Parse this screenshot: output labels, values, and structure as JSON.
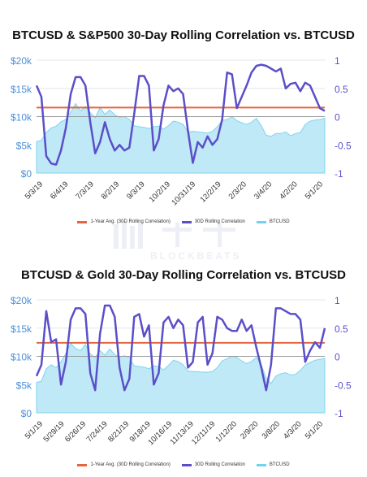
{
  "charts": [
    {
      "title": "BTCUSD & S&P500 30-Day Rolling Correlation vs. BTCUSD",
      "legend": [
        {
          "label": "1-Year Avg. (30D Rolling Correlation)",
          "color": "#e8643c"
        },
        {
          "label": "30D Rolling Correlation",
          "color": "#5b4fc9"
        },
        {
          "label": "BTCUSD",
          "color": "#6fd3f0"
        }
      ]
    },
    {
      "title": "BTCUSD & Gold 30-Day Rolling Correlation vs. BTCUSD",
      "legend": [
        {
          "label": "1-Year Avg. (30D Rolling Correlation)",
          "color": "#e8643c"
        },
        {
          "label": "30D Rolling Correlation",
          "color": "#5b4fc9"
        },
        {
          "label": "BTCUSD",
          "color": "#6fd3f0"
        }
      ]
    }
  ],
  "watermark": {
    "text": "BLOCKBEATS"
  },
  "chart_data": [
    {
      "type": "line",
      "title": "BTCUSD & S&P500 30-Day Rolling Correlation vs. BTCUSD",
      "x_tick_labels": [
        "5/3/19",
        "6/4/19",
        "7/3/19",
        "8/2/19",
        "9/3/19",
        "10/2/19",
        "10/31/19",
        "12/2/19",
        "2/3/20",
        "3/4/20",
        "4/2/20",
        "5/1/20"
      ],
      "left_axis": {
        "ticks": [
          "$0",
          "$5k",
          "$10k",
          "$15k",
          "$20k"
        ],
        "ylim": [
          0,
          20000
        ]
      },
      "right_axis": {
        "ticks": [
          "-1",
          "-0.5",
          "0",
          "0.5",
          "1"
        ],
        "ylim": [
          -1,
          1
        ]
      },
      "series": [
        {
          "name": "BTCUSD",
          "axis": "left",
          "kind": "area",
          "values": [
            5600,
            5800,
            7200,
            8000,
            8300,
            9100,
            9500,
            10800,
            12300,
            11000,
            11800,
            10700,
            9800,
            11600,
            10400,
            11200,
            10300,
            9900,
            10000,
            9500,
            8400,
            8200,
            8100,
            7900,
            8200,
            8300,
            7800,
            8400,
            9200,
            9000,
            8600,
            7300,
            7400,
            7300,
            7200,
            7100,
            7400,
            8200,
            9300,
            9500,
            10000,
            9300,
            8900,
            8600,
            9000,
            9700,
            8400,
            6700,
            6500,
            7000,
            7000,
            7300,
            6600,
            7000,
            7200,
            8600,
            9200,
            9400,
            9500,
            9700
          ]
        },
        {
          "name": "30D Rolling Correlation",
          "axis": "right",
          "kind": "line",
          "values": [
            0.55,
            0.35,
            -0.7,
            -0.83,
            -0.85,
            -0.6,
            -0.2,
            0.4,
            0.7,
            0.7,
            0.55,
            -0.1,
            -0.65,
            -0.45,
            -0.1,
            -0.4,
            -0.6,
            -0.5,
            -0.6,
            -0.55,
            0.05,
            0.72,
            0.72,
            0.55,
            -0.6,
            -0.4,
            0.2,
            0.55,
            0.45,
            0.5,
            0.4,
            -0.25,
            -0.82,
            -0.45,
            -0.55,
            -0.35,
            -0.5,
            -0.4,
            -0.05,
            0.78,
            0.75,
            0.15,
            0.35,
            0.55,
            0.78,
            0.9,
            0.92,
            0.9,
            0.85,
            0.8,
            0.85,
            0.5,
            0.58,
            0.6,
            0.45,
            0.6,
            0.55,
            0.35,
            0.15,
            0.1
          ]
        },
        {
          "name": "1-Year Avg. (30D Rolling Correlation)",
          "axis": "right",
          "kind": "hline",
          "values": [
            0.16
          ]
        }
      ]
    },
    {
      "type": "line",
      "title": "BTCUSD & Gold 30-Day Rolling Correlation vs. BTCUSD",
      "x_tick_labels": [
        "5/1/19",
        "5/29/19",
        "6/26/19",
        "7/24/19",
        "8/21/19",
        "9/18/19",
        "10/16/19",
        "11/13/19",
        "12/11/19",
        "1/12/20",
        "2/9/20",
        "3/8/20",
        "4/3/20",
        "5/1/20"
      ],
      "left_axis": {
        "ticks": [
          "$0",
          "$5k",
          "$10k",
          "$15k",
          "$20k"
        ],
        "ylim": [
          0,
          20000
        ]
      },
      "right_axis": {
        "ticks": [
          "-1",
          "-0.5",
          "0",
          "0.5",
          "1"
        ],
        "ylim": [
          -1,
          1
        ]
      },
      "series": [
        {
          "name": "BTCUSD",
          "axis": "left",
          "kind": "area",
          "values": [
            5400,
            5600,
            7800,
            8500,
            8000,
            9000,
            10500,
            12300,
            11400,
            11000,
            12100,
            10400,
            9800,
            11000,
            10200,
            11300,
            10300,
            9900,
            10100,
            9800,
            8300,
            8200,
            8100,
            7800,
            8300,
            8200,
            7600,
            8400,
            9300,
            9100,
            8500,
            7400,
            7300,
            7300,
            7200,
            7200,
            7300,
            8000,
            9200,
            9600,
            10000,
            9800,
            9200,
            8700,
            9100,
            9800,
            8500,
            6200,
            5200,
            6500,
            6900,
            7100,
            6700,
            6800,
            7500,
            8500,
            8900,
            9300,
            9500,
            9600
          ]
        },
        {
          "name": "30D Rolling Correlation",
          "axis": "right",
          "kind": "line",
          "values": [
            -0.35,
            -0.15,
            0.8,
            0.25,
            0.3,
            -0.5,
            -0.1,
            0.65,
            0.85,
            0.85,
            0.75,
            -0.3,
            -0.6,
            0.4,
            0.9,
            0.9,
            0.7,
            -0.2,
            -0.6,
            -0.4,
            0.7,
            0.75,
            0.35,
            0.55,
            -0.5,
            -0.3,
            0.6,
            0.7,
            0.5,
            0.65,
            0.55,
            -0.2,
            -0.1,
            0.6,
            0.7,
            -0.15,
            0.05,
            0.7,
            0.65,
            0.5,
            0.45,
            0.45,
            0.65,
            0.45,
            0.55,
            0.15,
            -0.2,
            -0.6,
            -0.15,
            0.85,
            0.85,
            0.8,
            0.75,
            0.75,
            0.65,
            -0.1,
            0.1,
            0.25,
            0.15,
            0.5
          ]
        },
        {
          "name": "1-Year Avg. (30D Rolling Correlation)",
          "axis": "right",
          "kind": "hline",
          "values": [
            0.24
          ]
        }
      ]
    }
  ]
}
